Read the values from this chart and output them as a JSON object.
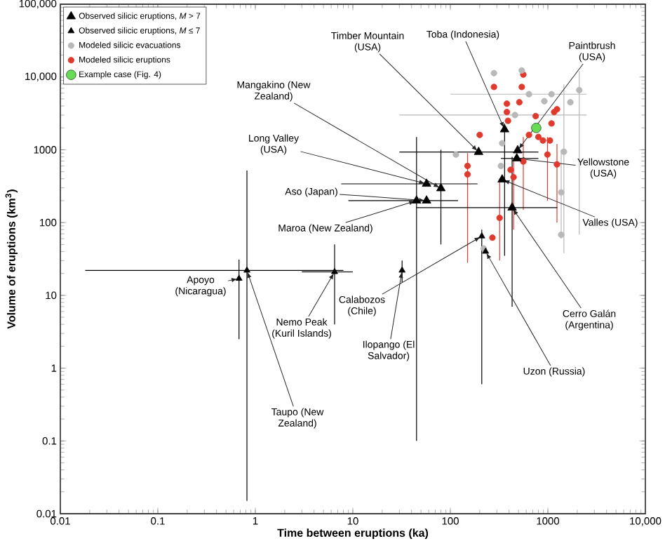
{
  "chart_data": {
    "type": "scatter",
    "log": "xy",
    "xlabel": "Time between eruptions (ka)",
    "ylabel": "Volume of eruptions (km$^{3}$)",
    "xlim": [
      0.01,
      10000
    ],
    "ylim": [
      0.01,
      100000
    ],
    "xticks": [
      0.01,
      0.1,
      1,
      10,
      100,
      1000,
      {
        "value": 10000,
        "label": "10,000"
      }
    ],
    "yticks": [
      0.01,
      0.1,
      1,
      10,
      100,
      1000,
      {
        "value": 10000,
        "label": "10,000"
      },
      {
        "value": 100000,
        "label": "100,000"
      }
    ],
    "legend": "top left",
    "series": [
      {
        "name": "Observed silicic eruptions, *M* > 7",
        "color": "#000000",
        "marker": "triangle",
        "x": [
          195,
          360,
          490,
          480,
          340,
          430,
          80,
          57,
          57,
          45
        ],
        "values": [
          930,
          1900,
          980,
          760,
          390,
          160,
          295,
          340,
          200,
          200
        ],
        "errors": [
          null,
          [
            35,
            2300
          ],
          null,
          null,
          null,
          [
            7,
            800
          ],
          [
            50,
            1000
          ],
          null,
          null,
          [
            0.1,
            1500
          ]
        ],
        "xerrors": [
          [
            30,
            800
          ],
          null,
          null,
          [
            330,
            800
          ],
          null,
          [
            45,
            1250
          ],
          null,
          [
            7.6,
            190
          ],
          [
            9,
            120
          ],
          null
        ]
      },
      {
        "name": "Observed silicic eruptions, *M* ≤ 7",
        "color": "#000000",
        "marker": "triangle",
        "x": [
          210,
          230,
          32,
          6.5,
          0.68,
          0.82
        ],
        "values": [
          65,
          40,
          22,
          21,
          17,
          22
        ],
        "errors": [
          [
            0.6,
            80
          ],
          null,
          [
            15,
            30
          ],
          [
            4,
            50
          ],
          [
            2.5,
            31
          ],
          [
            0.015,
            520
          ]
        ],
        "xerrors": [
          null,
          null,
          null,
          [
            3,
            10
          ],
          null,
          [
            0.018,
            8
          ]
        ]
      },
      {
        "name": "Modeled silicic evacuations",
        "color": "#b8b8b8",
        "marker": "circle",
        "x": [
          280,
          540,
          2100,
          1700,
          1460,
          1370,
          1370,
          114,
          330,
          640,
          1090,
          920,
          220,
          340,
          460
        ],
        "values": [
          11300,
          12300,
          6600,
          4500,
          940,
          260,
          68,
          860,
          600,
          5800,
          5800,
          4650,
          44,
          1230,
          3000
        ],
        "errors": [
          null,
          null,
          [
            68,
            12000
          ],
          null,
          [
            38,
            7900
          ],
          [
            60,
            1000
          ],
          null,
          null,
          null,
          null,
          null,
          null,
          null,
          null,
          null
        ],
        "xerrors": [
          null,
          null,
          null,
          null,
          null,
          null,
          null,
          null,
          null,
          [
            100,
            2500
          ],
          null,
          null,
          null,
          null,
          [
            30,
            2500
          ]
        ]
      },
      {
        "name": "Modeled silicic eruptions",
        "color": "#e03a2e",
        "marker": "circle",
        "x": [
          280,
          540,
          560,
          380,
          510,
          380,
          390,
          200,
          150,
          150,
          415,
          445,
          320,
          270,
          560,
          800,
          890,
          1050,
          1160,
          1090,
          1240,
          750,
          640,
          990,
          1240
        ],
        "values": [
          7300,
          7300,
          10800,
          4300,
          4500,
          3300,
          2500,
          1600,
          600,
          460,
          530,
          420,
          116,
          62,
          690,
          1500,
          1340,
          1340,
          3300,
          2300,
          3600,
          2900,
          1600,
          860,
          630
        ],
        "errors": [
          null,
          null,
          null,
          null,
          null,
          null,
          null,
          null,
          [
            28,
            900
          ],
          null,
          null,
          [
            80,
            700
          ],
          [
            30,
            400
          ],
          null,
          [
            150,
            1500
          ],
          null,
          null,
          null,
          null,
          null,
          null,
          null,
          null,
          [
            200,
            1500
          ],
          [
            100,
            1200
          ]
        ]
      },
      {
        "name": "Example case (Fig. 4)",
        "color": "#66dd55",
        "marker": "circle",
        "x": [
          760
        ],
        "values": [
          2000
        ]
      }
    ],
    "annotations": [
      {
        "text": "Timber Mountain (USA)",
        "x": 195,
        "y": 930
      },
      {
        "text": "Toba (Indonesia)",
        "x": 360,
        "y": 1900
      },
      {
        "text": "Paintbrush (USA)",
        "x": 490,
        "y": 980
      },
      {
        "text": "Mangakino (New Zealand)",
        "x": 80,
        "y": 295
      },
      {
        "text": "Long Valley (USA)",
        "x": 57,
        "y": 340
      },
      {
        "text": "Aso (Japan)",
        "x": 57,
        "y": 200
      },
      {
        "text": "Maroa (New Zealand)",
        "x": 45,
        "y": 200
      },
      {
        "text": "Yellowstone (USA)",
        "x": 480,
        "y": 760
      },
      {
        "text": "Valles (USA)",
        "x": 340,
        "y": 390
      },
      {
        "text": "Cerro Galán (Argentina)",
        "x": 430,
        "y": 160
      },
      {
        "text": "Calabozos (Chile)",
        "x": 210,
        "y": 65
      },
      {
        "text": "Uzon (Russia)",
        "x": 230,
        "y": 40
      },
      {
        "text": "Ilopango (El Salvador)",
        "x": 32,
        "y": 22
      },
      {
        "text": "Nemo Peak (Kuril Islands)",
        "x": 6.5,
        "y": 21
      },
      {
        "text": "Apoyo (Nicaragua)",
        "x": 0.68,
        "y": 17
      },
      {
        "text": "Taupo (New Zealand)",
        "x": 0.82,
        "y": 22
      }
    ]
  }
}
